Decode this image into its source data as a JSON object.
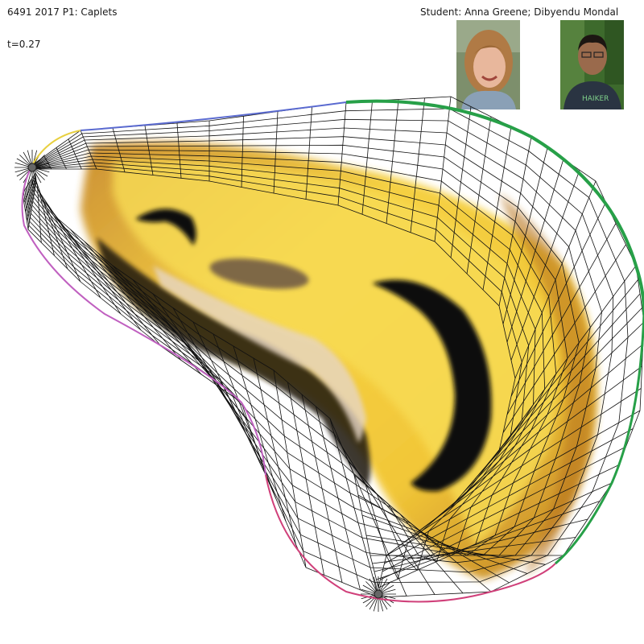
{
  "header": {
    "title": "6491 2017 P1: Caplets",
    "time_readout": "t=0.27",
    "credits": "Student: Anna Greene; Dibyendu Mondal"
  },
  "photos": [
    {
      "person": "Anna Greene",
      "background": "#7d8f6c",
      "hair": "#b07a45",
      "skin": "#e8b79c",
      "shirt": "#8aa0b6"
    },
    {
      "person": "Dibyendu Mondal",
      "background": "#3d6a2c",
      "hair": "#1c1612",
      "skin": "#9a6a4c",
      "shirt": "#2a3442"
    }
  ],
  "colors": {
    "mesh_line": "#111111",
    "boundary_green": "#27a048",
    "boundary_pink": "#d0407a",
    "boundary_blue": "#5a6ad0",
    "boundary_yellow": "#e8d040",
    "texture_yellow": "#f5cf3a",
    "texture_orange": "#d7921e",
    "texture_dark": "#111111"
  }
}
